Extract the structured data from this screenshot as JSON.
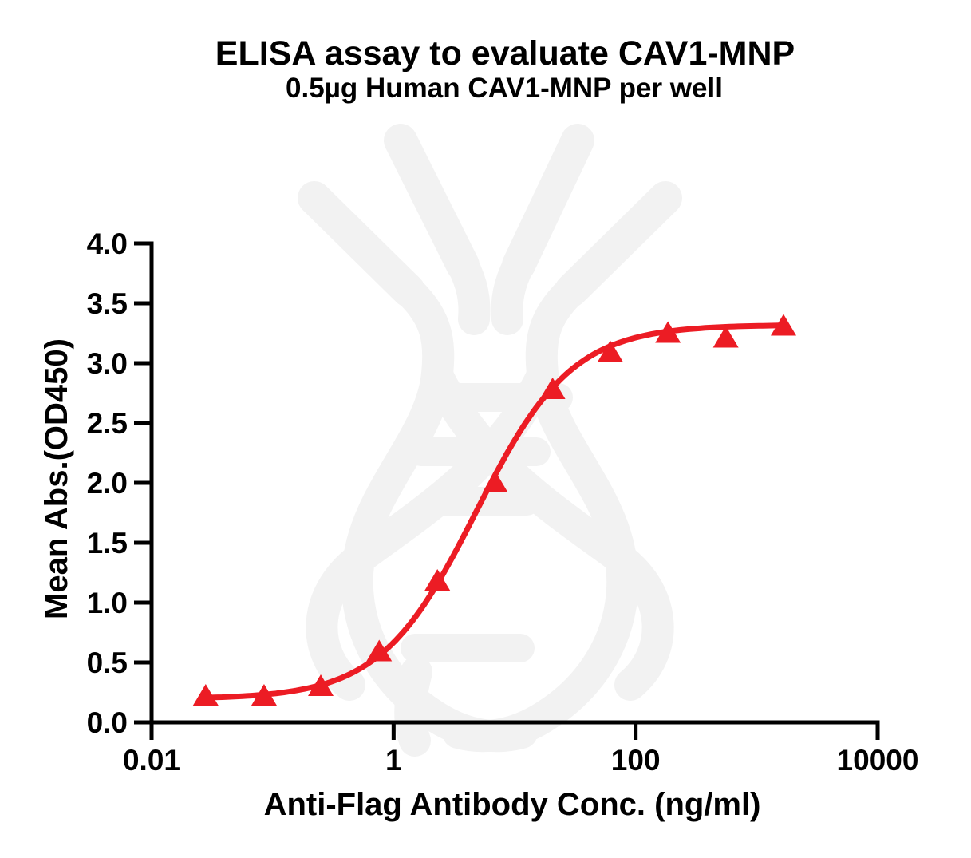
{
  "chart_data": {
    "type": "scatter",
    "title": "ELISA assay to evaluate CAV1-MNP",
    "subtitle": "0.5µg Human CAV1-MNP per well",
    "xlabel": "Anti-Flag Antibody Conc. (ng/ml)",
    "ylabel": "Mean Abs.(OD450)",
    "x_scale": "log10",
    "xlim": [
      0.01,
      10000
    ],
    "ylim": [
      0.0,
      4.0
    ],
    "grid": false,
    "legend": "none",
    "x_ticks": [
      {
        "value": 0.01,
        "label": "0.01"
      },
      {
        "value": 1,
        "label": "1"
      },
      {
        "value": 100,
        "label": "100"
      },
      {
        "value": 10000,
        "label": "10000"
      }
    ],
    "y_ticks": [
      {
        "value": 0.0,
        "label": "0.0"
      },
      {
        "value": 0.5,
        "label": "0.5"
      },
      {
        "value": 1.0,
        "label": "1.0"
      },
      {
        "value": 1.5,
        "label": "1.5"
      },
      {
        "value": 2.0,
        "label": "2.0"
      },
      {
        "value": 2.5,
        "label": "2.5"
      },
      {
        "value": 3.0,
        "label": "3.0"
      },
      {
        "value": 3.5,
        "label": "3.5"
      },
      {
        "value": 4.0,
        "label": "4.0"
      }
    ],
    "series": [
      {
        "name": "Human CAV1-MNP (0.5µg per well)",
        "marker": "triangle-up",
        "color": "#EC1C24",
        "x": [
          0.028,
          0.085,
          0.25,
          0.76,
          2.3,
          6.9,
          20.6,
          61.7,
          185,
          556,
          1667
        ],
        "y": [
          0.22,
          0.22,
          0.3,
          0.59,
          1.18,
          2.0,
          2.78,
          3.09,
          3.25,
          3.21,
          3.31
        ]
      }
    ],
    "fit_curve": {
      "model": "4PL",
      "bottom": 0.195,
      "top": 3.32,
      "ec50": 4.8,
      "hill": 1.1
    }
  },
  "watermark": {
    "label": "antibody-dna-helix-logo",
    "color": "#F2F2F2"
  },
  "colors": {
    "series_red": "#EC1C24",
    "axis_black": "#000000",
    "watermark_gray": "#F2F2F2",
    "background": "#FFFFFF"
  }
}
